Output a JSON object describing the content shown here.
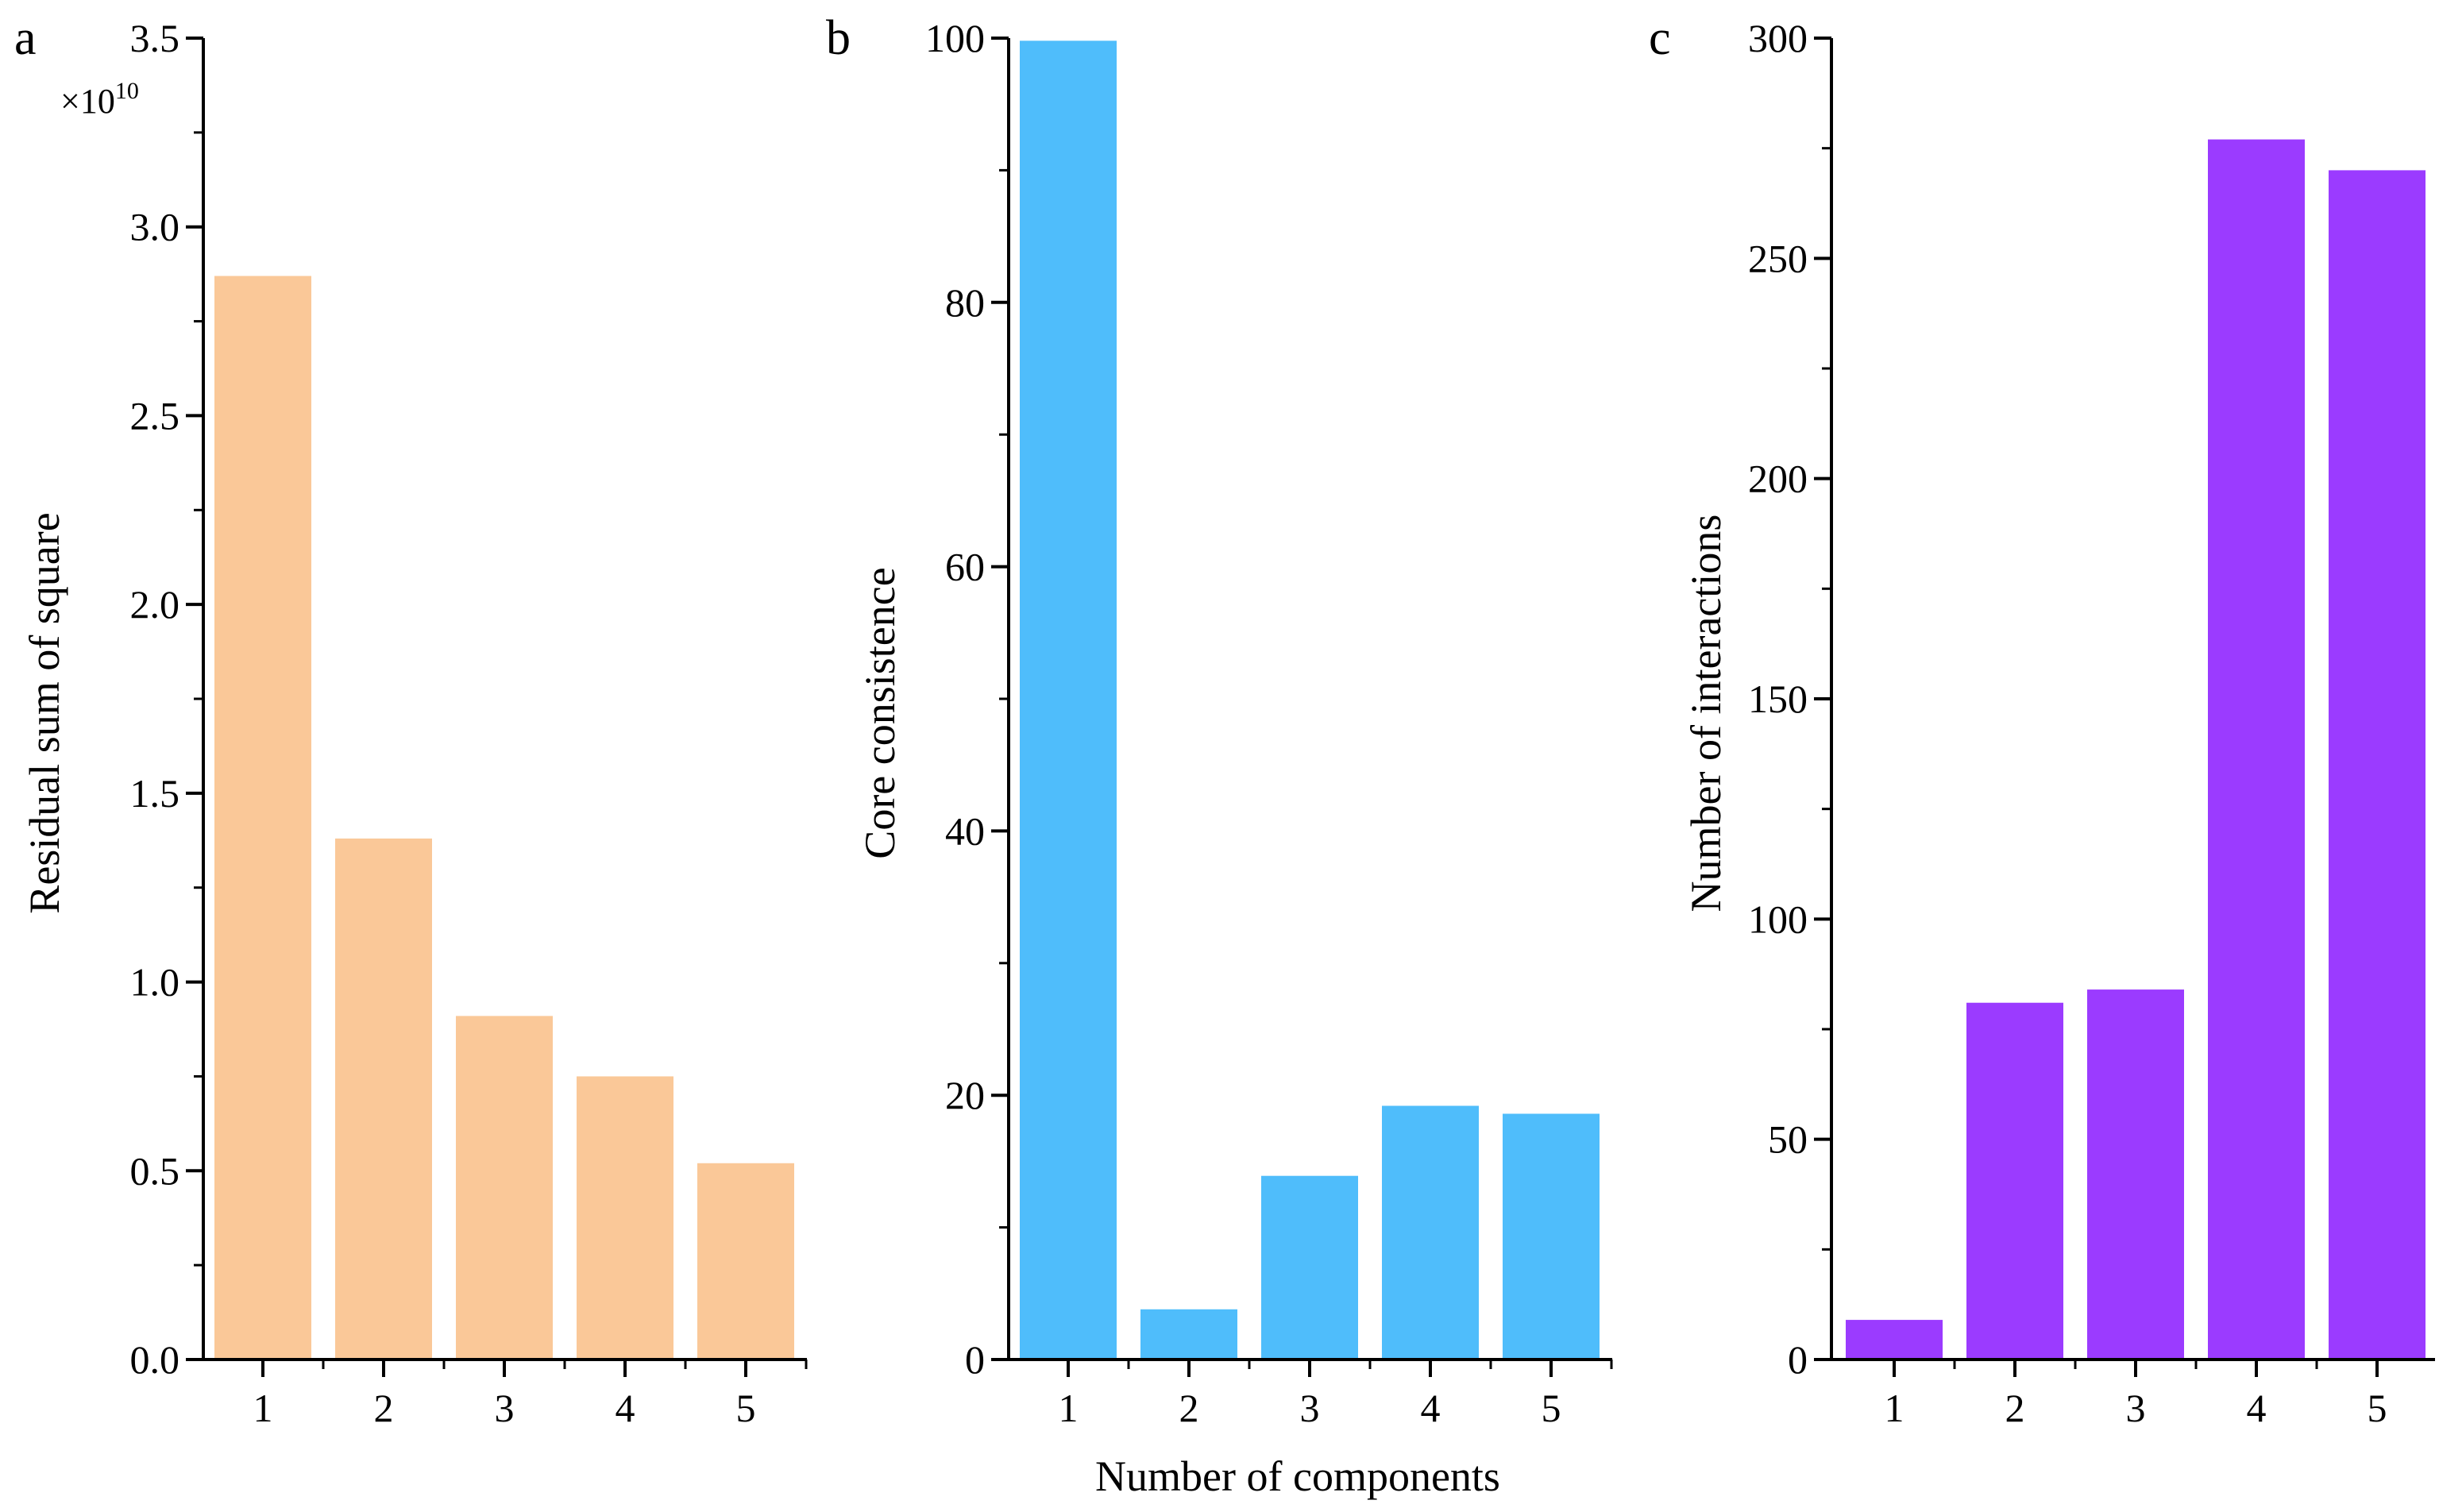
{
  "figure": {
    "shared_xlabel": "Number of components"
  },
  "chart_data": [
    {
      "type": "bar",
      "panel": "a",
      "categories": [
        "1",
        "2",
        "3",
        "4",
        "5"
      ],
      "values": [
        2.87,
        1.38,
        0.91,
        0.75,
        0.52
      ],
      "color": "#FAC898",
      "ylabel": "Residual sum of square",
      "xlabel": "",
      "ylim": [
        0,
        3.5
      ],
      "yticks": [
        "0.0",
        "0.5",
        "1.0",
        "1.5",
        "2.0",
        "2.5",
        "3.0",
        "3.5"
      ],
      "y_multiplier_base": "×10",
      "y_multiplier_exponent": "10"
    },
    {
      "type": "bar",
      "panel": "b",
      "categories": [
        "1",
        "2",
        "3",
        "4",
        "5"
      ],
      "values": [
        99.8,
        3.8,
        13.9,
        19.2,
        18.6
      ],
      "color": "#4FBDFB",
      "ylabel": "Core consistence",
      "xlabel": "Number of components",
      "ylim": [
        0,
        100
      ],
      "yticks": [
        "0",
        "20",
        "40",
        "60",
        "80",
        "100"
      ]
    },
    {
      "type": "bar",
      "panel": "c",
      "categories": [
        "1",
        "2",
        "3",
        "4",
        "5"
      ],
      "values": [
        9,
        81,
        84,
        277,
        270
      ],
      "color": "#9B3BFF",
      "ylabel": "Number of interactions",
      "xlabel": "",
      "ylim": [
        0,
        300
      ],
      "yticks": [
        "0",
        "50",
        "100",
        "150",
        "200",
        "250",
        "300"
      ]
    }
  ]
}
